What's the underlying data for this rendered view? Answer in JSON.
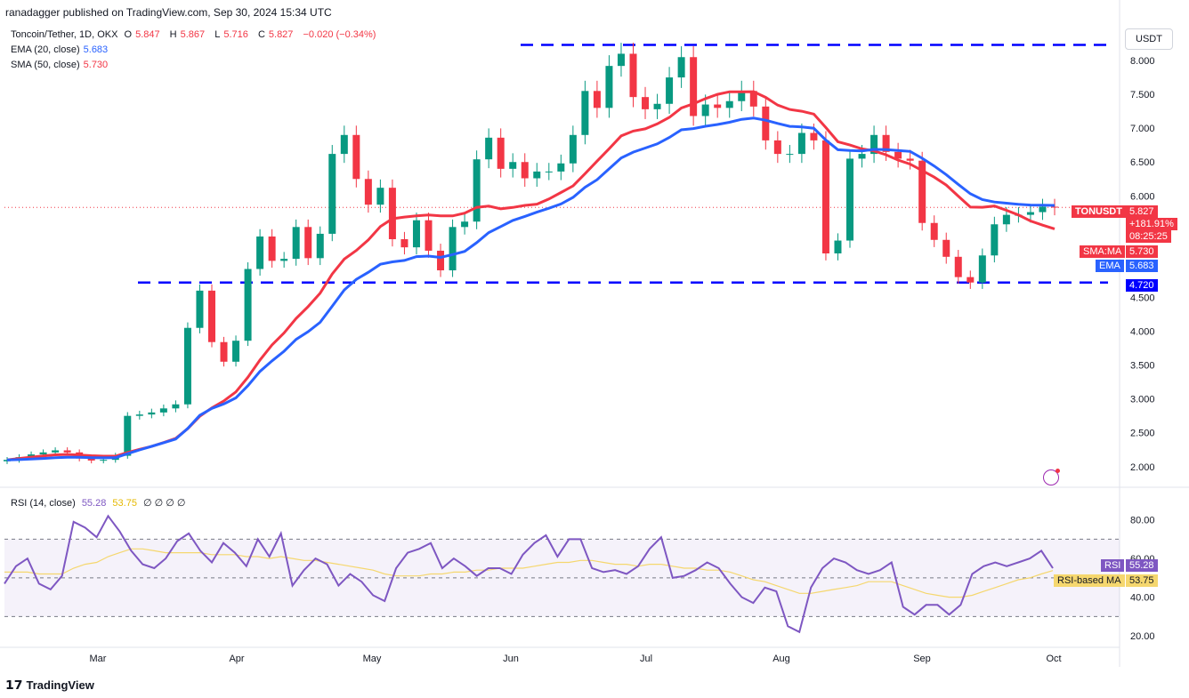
{
  "header": {
    "published": "ranadagger published on TradingView.com, Sep 30, 2024 15:34 UTC"
  },
  "legend": {
    "symbol": "Toncoin/Tether, 1D, OKX",
    "ohlc": {
      "o_label": "O",
      "o": "5.847",
      "h_label": "H",
      "h": "5.867",
      "l_label": "L",
      "l": "5.716",
      "c_label": "C",
      "c": "5.827",
      "chg": "−0.020 (−0.34%)"
    },
    "ema": {
      "label": "EMA (20, close)",
      "value": "5.683"
    },
    "sma": {
      "label": "SMA (50, close)",
      "value": "5.730"
    }
  },
  "unit": "USDT",
  "price_badges": {
    "ticker": "TONUSDT",
    "price": "5.827",
    "change": "+181.91%",
    "countdown": "08:25:25",
    "sma_label": "SMA:MA",
    "sma_value": "5.730",
    "ema_label": "EMA",
    "ema_value": "5.683",
    "level": "4.720"
  },
  "rsi_legend": {
    "label": "RSI (14, close)",
    "v1": "55.28",
    "v2": "53.75",
    "rest": "∅ ∅ ∅ ∅"
  },
  "rsi_badges": {
    "rsi_label": "RSI",
    "rsi_value": "55.28",
    "ma_label": "RSI-based MA",
    "ma_value": "53.75"
  },
  "footer": {
    "brand": "TradingView"
  },
  "colors": {
    "up": "#089981",
    "down": "#f23645",
    "ema": "#2962ff",
    "sma": "#f23645",
    "rsi": "#7e57c2",
    "rsi_ma": "#f5d76e",
    "level": "#0000ff"
  },
  "chart_data": [
    {
      "type": "candlestick",
      "title": "Toncoin/Tether, 1D, OKX",
      "ylabel": "USDT",
      "ylim": [
        1.8,
        8.5
      ],
      "y_ticks": [
        "2.000",
        "2.500",
        "3.000",
        "3.500",
        "4.000",
        "4.500",
        "5.000",
        "5.500",
        "6.000",
        "6.500",
        "7.000",
        "7.500",
        "8.000"
      ],
      "x_ticks": [
        "Mar",
        "Apr",
        "May",
        "Jun",
        "Jul",
        "Aug",
        "Sep",
        "Oct"
      ],
      "horizontal_levels": [
        8.23,
        4.72
      ],
      "close_series": [
        2.1,
        2.14,
        2.18,
        2.21,
        2.24,
        2.21,
        2.12,
        2.09,
        2.1,
        2.16,
        2.75,
        2.77,
        2.8,
        2.86,
        2.92,
        4.05,
        4.6,
        3.84,
        3.55,
        3.86,
        4.92,
        5.4,
        5.04,
        5.07,
        5.54,
        5.08,
        5.44,
        6.62,
        6.9,
        6.25,
        5.87,
        6.12,
        5.36,
        5.24,
        5.64,
        5.19,
        4.9,
        5.54,
        5.62,
        6.54,
        6.86,
        6.4,
        6.5,
        6.26,
        6.36,
        6.36,
        6.48,
        6.9,
        7.55,
        7.3,
        7.92,
        8.1,
        7.46,
        7.28,
        7.36,
        7.75,
        8.05,
        7.18,
        7.35,
        7.3,
        7.4,
        7.55,
        7.32,
        6.82,
        6.62,
        6.62,
        6.93,
        6.82,
        5.15,
        5.34,
        6.55,
        6.62,
        6.9,
        6.65,
        6.55,
        6.52,
        5.6,
        5.35,
        5.1,
        4.8,
        4.72,
        5.12,
        5.58,
        5.72,
        5.72,
        5.76,
        5.84,
        5.83
      ],
      "ema": {
        "name": "EMA (20, close)",
        "last": 5.683
      },
      "sma": {
        "name": "SMA (50, close)",
        "last": 5.73
      }
    },
    {
      "type": "line",
      "title": "RSI (14, close)",
      "ylim": [
        15,
        95
      ],
      "y_ticks": [
        "20.00",
        "40.00",
        "60.00",
        "80.00"
      ],
      "bands": [
        30,
        70
      ],
      "series": [
        {
          "name": "RSI",
          "values": [
            47,
            56,
            60,
            47,
            44,
            51,
            79,
            76,
            71,
            82,
            74,
            64,
            57,
            55,
            60,
            69,
            73,
            64,
            58,
            68,
            63,
            56,
            70,
            61,
            73,
            46,
            54,
            60,
            57,
            46,
            52,
            48,
            41,
            38,
            55,
            63,
            65,
            68,
            55,
            60,
            56,
            51,
            55,
            55,
            52,
            62,
            68,
            72,
            61,
            70,
            70,
            55,
            53,
            54,
            52,
            56,
            65,
            71,
            50,
            51,
            54,
            58,
            55,
            47,
            40,
            37,
            45,
            43,
            25,
            22,
            45,
            55,
            60,
            58,
            54,
            52,
            54,
            58,
            35,
            31,
            36,
            36,
            31,
            36,
            52,
            56,
            58,
            56,
            58,
            60,
            64,
            55
          ]
        },
        {
          "name": "RSI-based MA",
          "values": [
            53,
            53,
            53,
            52,
            52,
            52,
            55,
            57,
            58,
            61,
            63,
            65,
            65,
            64,
            63,
            63,
            63,
            63,
            62,
            62,
            62,
            61,
            61,
            60,
            61,
            60,
            59,
            59,
            58,
            57,
            56,
            55,
            54,
            52,
            51,
            51,
            51,
            52,
            52,
            53,
            53,
            54,
            54,
            55,
            55,
            55,
            56,
            57,
            58,
            58,
            59,
            59,
            58,
            57,
            57,
            56,
            57,
            57,
            56,
            55,
            55,
            54,
            54,
            53,
            51,
            49,
            48,
            46,
            44,
            42,
            42,
            43,
            44,
            45,
            46,
            48,
            48,
            48,
            46,
            44,
            42,
            41,
            40,
            40,
            41,
            43,
            45,
            47,
            49,
            50,
            52,
            53.75
          ]
        }
      ]
    }
  ]
}
